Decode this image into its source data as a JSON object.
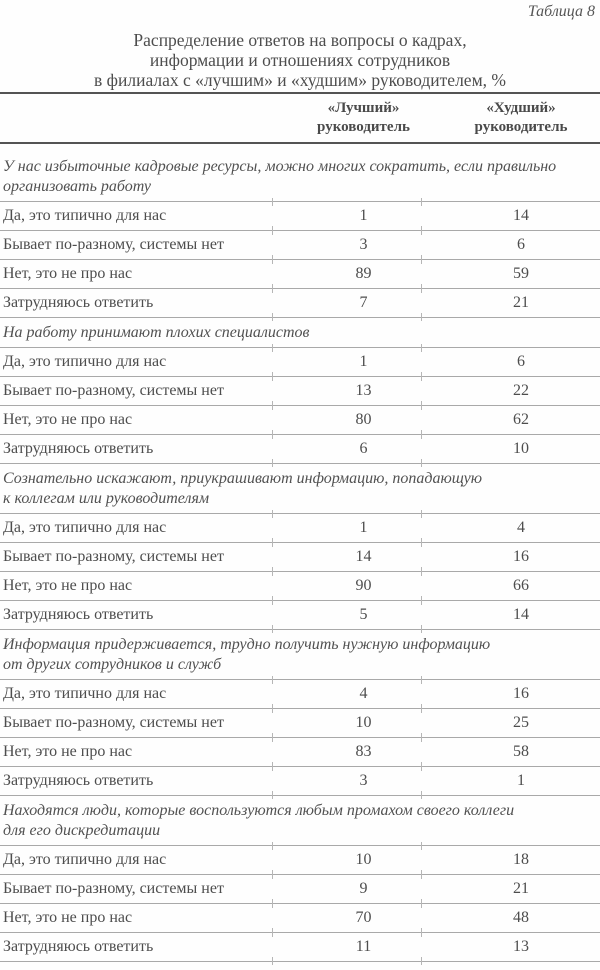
{
  "page": {
    "table_label": "Таблица 8"
  },
  "title_lines": [
    "Распределение ответов на вопросы о кадрах,",
    "информации и отношениях сотрудников",
    "в филиалах с «лучшим» и «худшим» руководителем, %"
  ],
  "header": {
    "col_best": [
      "«Лучший»",
      "руководитель"
    ],
    "col_worst": [
      "«Худший»",
      "руководитель"
    ]
  },
  "colors": {
    "text": "#4d4d4d",
    "thick_rule": "#545454",
    "thin_rule": "#a9a9a9"
  },
  "sections": [
    {
      "title": [
        "У нас избыточные кадровые ресурсы, можно многих сократить, если правильно",
        "организовать работу"
      ],
      "rows": [
        {
          "label": "Да, это типично для нас",
          "best": 1,
          "worst": 14
        },
        {
          "label": "Бывает по-разному, системы нет",
          "best": 3,
          "worst": 6
        },
        {
          "label": "Нет, это не про нас",
          "best": 89,
          "worst": 59
        },
        {
          "label": "Затрудняюсь ответить",
          "best": 7,
          "worst": 21
        }
      ]
    },
    {
      "title": [
        "На работу принимают плохих специалистов"
      ],
      "rows": [
        {
          "label": "Да, это типично для нас",
          "best": 1,
          "worst": 6
        },
        {
          "label": "Бывает по-разному, системы нет",
          "best": 13,
          "worst": 22
        },
        {
          "label": "Нет, это не про нас",
          "best": 80,
          "worst": 62
        },
        {
          "label": "Затрудняюсь ответить",
          "best": 6,
          "worst": 10
        }
      ]
    },
    {
      "title": [
        "Сознательно искажают, приукрашивают информацию, попадающую",
        "к коллегам или руководителям"
      ],
      "rows": [
        {
          "label": "Да, это типично для нас",
          "best": 1,
          "worst": 4
        },
        {
          "label": "Бывает по-разному, системы нет",
          "best": 14,
          "worst": 16
        },
        {
          "label": "Нет, это не про нас",
          "best": 90,
          "worst": 66
        },
        {
          "label": "Затрудняюсь ответить",
          "best": 5,
          "worst": 14
        }
      ]
    },
    {
      "title": [
        "Информация придерживается, трудно получить нужную информацию",
        "от других сотрудников и служб"
      ],
      "rows": [
        {
          "label": "Да, это типично для нас",
          "best": 4,
          "worst": 16
        },
        {
          "label": "Бывает по-разному, системы нет",
          "best": 10,
          "worst": 25
        },
        {
          "label": "Нет, это не про нас",
          "best": 83,
          "worst": 58
        },
        {
          "label": "Затрудняюсь ответить",
          "best": 3,
          "worst": 1
        }
      ]
    },
    {
      "title": [
        "Находятся люди, которые воспользуются любым промахом своего коллеги",
        "для его дискредитации"
      ],
      "rows": [
        {
          "label": "Да, это типично для нас",
          "best": 10,
          "worst": 18
        },
        {
          "label": "Бывает по-разному, системы нет",
          "best": 9,
          "worst": 21
        },
        {
          "label": "Нет, это не про нас",
          "best": 70,
          "worst": 48
        },
        {
          "label": "Затрудняюсь ответить",
          "best": 11,
          "worst": 13
        }
      ]
    }
  ]
}
